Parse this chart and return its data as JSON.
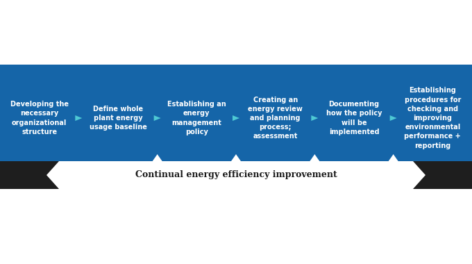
{
  "bg_color": "#ffffff",
  "blue_bg": "#1565a8",
  "dark_bar": "#1e1e1e",
  "arrow_color": "#4ec9d4",
  "white_text": "#ffffff",
  "dark_text": "#1a1a1a",
  "steps": [
    "Developing the\nnecessary\norganizational\nstructure",
    "Define whole\nplant energy\nusage baseline",
    "Establishing an\nenergy\nmanagement\npolicy",
    "Creating an\nenergy review\nand planning\nprocess;\nassessment",
    "Documenting\nhow the policy\nwill be\nimplemented",
    "Establishing\nprocedures for\nchecking and\nimproving\nenvironmental\nperformance +\nreporting"
  ],
  "bottom_label": "Continual energy efficiency improvement",
  "fig_width": 6.8,
  "fig_height": 3.8
}
